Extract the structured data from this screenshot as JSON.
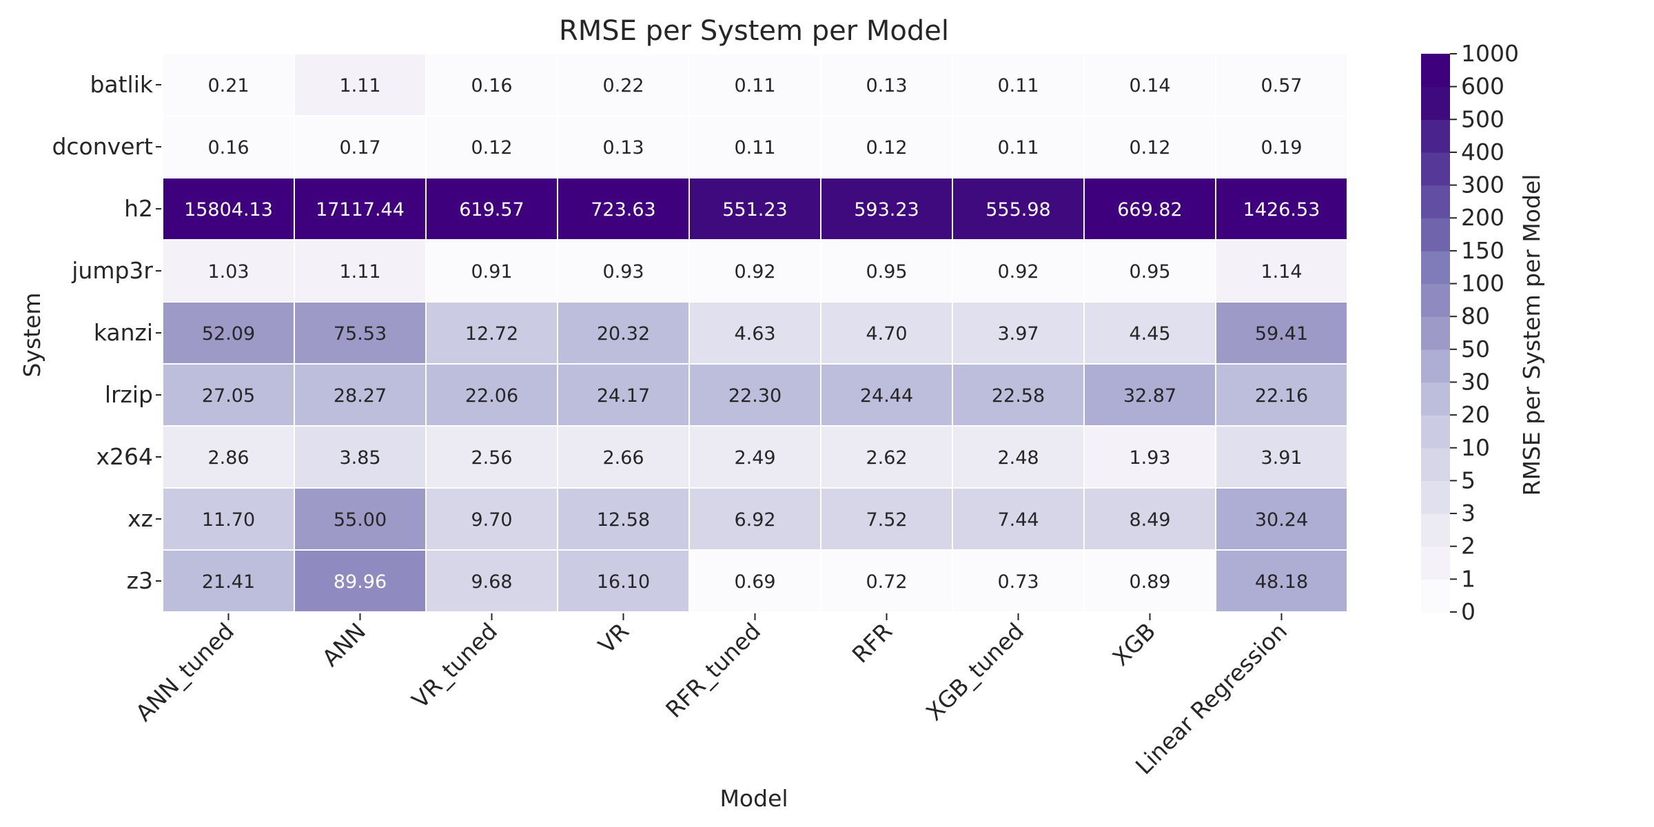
{
  "chart_data": {
    "type": "heatmap",
    "title": "RMSE per System per Model",
    "xlabel": "Model",
    "ylabel": "System",
    "colorbar_label": "RMSE per System per Model",
    "colormap": "Purples",
    "color_scale": "binned",
    "x_categories": [
      "ANN_tuned",
      "ANN",
      "VR_tuned",
      "VR",
      "RFR_tuned",
      "RFR",
      "XGB_tuned",
      "XGB",
      "Linear Regression"
    ],
    "y_categories": [
      "batlik",
      "dconvert",
      "h2",
      "jump3r",
      "kanzi",
      "lrzip",
      "x264",
      "xz",
      "z3"
    ],
    "values": [
      [
        0.21,
        1.11,
        0.16,
        0.22,
        0.11,
        0.13,
        0.11,
        0.14,
        0.57
      ],
      [
        0.16,
        0.17,
        0.12,
        0.13,
        0.11,
        0.12,
        0.11,
        0.12,
        0.19
      ],
      [
        15804.13,
        17117.44,
        619.57,
        723.63,
        551.23,
        593.23,
        555.98,
        669.82,
        1426.53
      ],
      [
        1.03,
        1.11,
        0.91,
        0.93,
        0.92,
        0.95,
        0.92,
        0.95,
        1.14
      ],
      [
        52.09,
        75.53,
        12.72,
        20.32,
        4.63,
        4.7,
        3.97,
        4.45,
        59.41
      ],
      [
        27.05,
        28.27,
        22.06,
        24.17,
        22.3,
        24.44,
        22.58,
        32.87,
        22.16
      ],
      [
        2.86,
        3.85,
        2.56,
        2.66,
        2.49,
        2.62,
        2.48,
        1.93,
        3.91
      ],
      [
        11.7,
        55.0,
        9.7,
        12.58,
        6.92,
        7.52,
        7.44,
        8.49,
        30.24
      ],
      [
        21.41,
        89.96,
        9.68,
        16.1,
        0.69,
        0.72,
        0.73,
        0.89,
        48.18
      ]
    ],
    "value_format": "2 decimals",
    "colorbar_ticks": [
      "0",
      "1",
      "2",
      "3",
      "5",
      "10",
      "20",
      "30",
      "50",
      "80",
      "100",
      "150",
      "200",
      "300",
      "400",
      "500",
      "600",
      "1000"
    ],
    "colorbar_boundaries": [
      0,
      1,
      2,
      3,
      5,
      10,
      20,
      30,
      50,
      80,
      100,
      150,
      200,
      300,
      400,
      500,
      600,
      1000
    ],
    "colorbar_colors": [
      "#fbfafc",
      "#f4f2f8",
      "#ecebf3",
      "#e1e0ee",
      "#d7d6e9",
      "#cbcbe3",
      "#bdbddc",
      "#aeadd3",
      "#9e9ac8",
      "#8f8bc0",
      "#7f7cb9",
      "#7064ad",
      "#624ea2",
      "#553897",
      "#4b238c",
      "#400a7f",
      "#3f007d"
    ],
    "cell_text_colors": {
      "light_bg": "#262626",
      "dark_bg": "#ffffff"
    },
    "grid_line_color": "#ffffff"
  }
}
